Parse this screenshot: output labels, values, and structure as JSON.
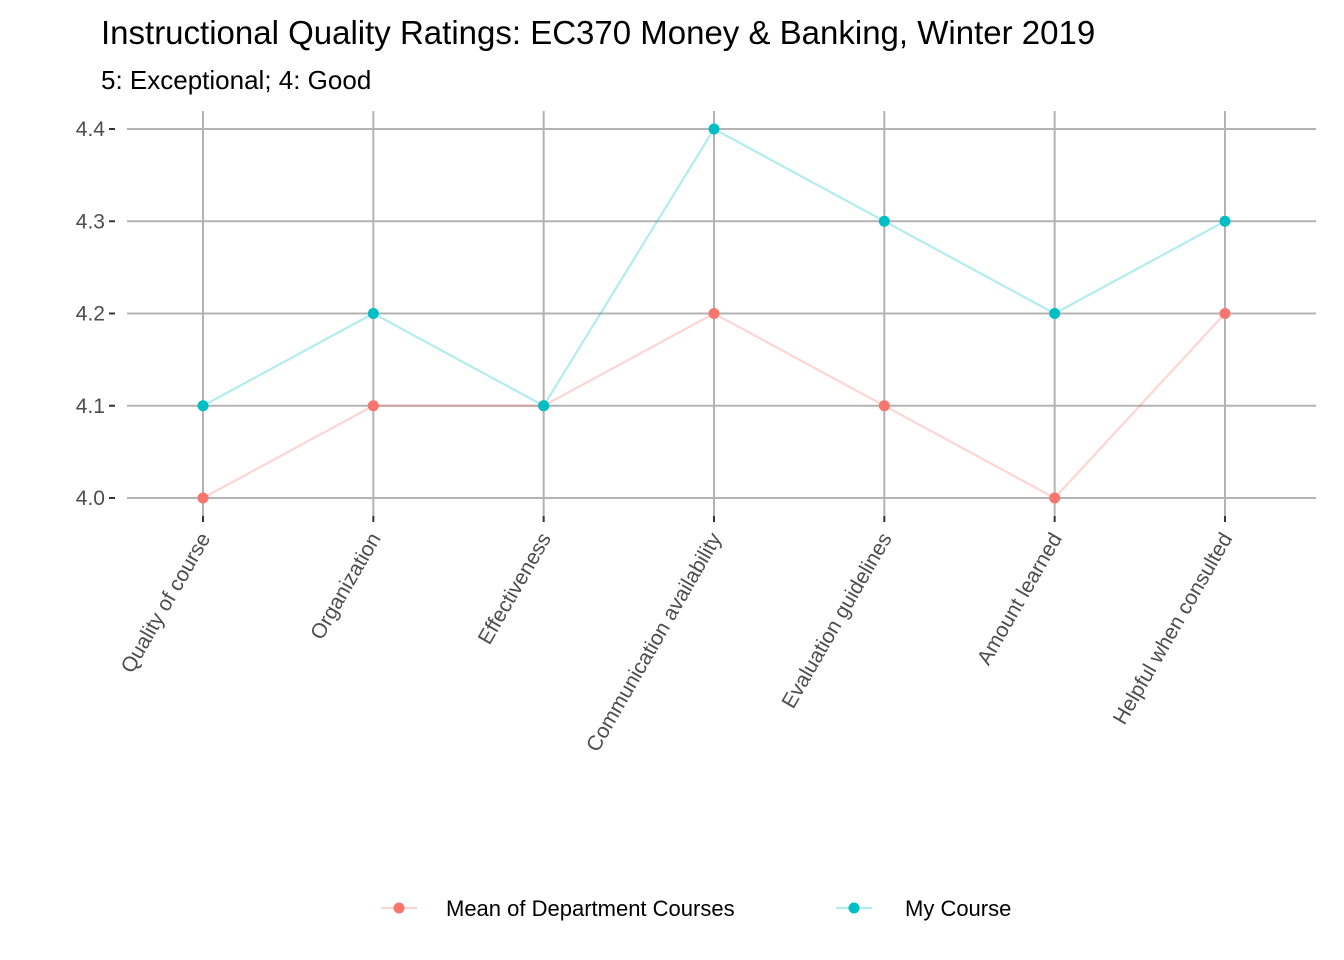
{
  "chart_data": {
    "type": "line",
    "title": "Instructional Quality Ratings: EC370 Money & Banking, Winter 2019",
    "subtitle": "5: Exceptional; 4: Good",
    "xlabel": "",
    "ylabel": "",
    "categories": [
      "Quality of course",
      "Organization",
      "Effectiveness",
      "Communication availability",
      "Evaluation guidelines",
      "Amount learned",
      "Helpful when consulted"
    ],
    "y_ticks": [
      "4.0",
      "4.1",
      "4.2",
      "4.3",
      "4.4"
    ],
    "ylim": [
      4.0,
      4.4
    ],
    "grid": true,
    "legend_position": "bottom",
    "series": [
      {
        "name": "Mean of Department Courses",
        "color": "#F8766D",
        "values": [
          4.0,
          4.1,
          4.1,
          4.2,
          4.1,
          4.0,
          4.2
        ]
      },
      {
        "name": "My Course",
        "color": "#00BFC4",
        "values": [
          4.1,
          4.2,
          4.1,
          4.4,
          4.3,
          4.2,
          4.3
        ]
      }
    ]
  }
}
